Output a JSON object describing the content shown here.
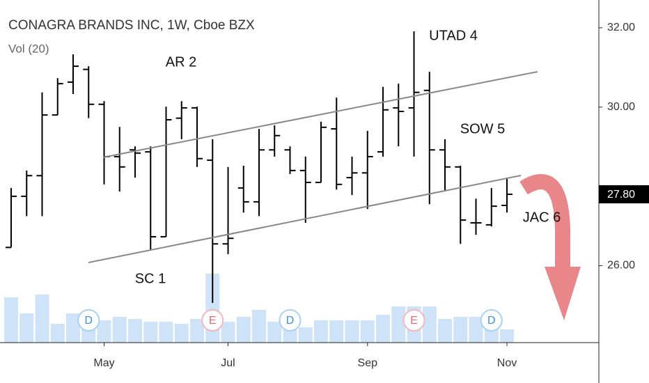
{
  "chart_data": {
    "type": "ohlc",
    "title": "CONAGRA BRANDS INC, 1W, Cboe BZX",
    "subtitle": "Vol (20)",
    "categories": [
      null,
      null,
      null,
      null,
      null,
      null,
      "May",
      null,
      null,
      null,
      null,
      null,
      null,
      null,
      "Jul",
      null,
      null,
      null,
      null,
      null,
      null,
      null,
      null,
      "Sep",
      null,
      null,
      null,
      null,
      null,
      null,
      null,
      null,
      "Nov"
    ],
    "open": [
      26.46,
      27.75,
      28.27,
      29.8,
      30.63,
      30.95,
      30.07,
      28.75,
      28.92,
      28.87,
      26.73,
      29.72,
      29.98,
      28.66,
      26.55,
      27.96,
      27.61,
      28.92,
      28.92,
      28.4,
      28.1,
      29.45,
      28.22,
      28.34,
      28.87,
      29.98,
      29.98,
      30.42,
      28.92,
      28.49,
      27.08,
      27.03,
      27.52
    ],
    "high": [
      27.96,
      28.4,
      30.37,
      30.73,
      31.33,
      31.03,
      30.15,
      29.5,
      29.01,
      29.01,
      30.01,
      30.15,
      30.01,
      29.19,
      28.49,
      28.52,
      29.45,
      29.54,
      29.01,
      28.75,
      29.63,
      30.24,
      28.75,
      29.4,
      30.51,
      30.59,
      31.91,
      30.89,
      29.19,
      28.52,
      27.69,
      27.96,
      28.22
    ],
    "low": [
      26.46,
      27.25,
      27.25,
      29.8,
      30.33,
      29.72,
      28.05,
      27.87,
      28.22,
      26.38,
      26.73,
      29.19,
      28.49,
      25.06,
      26.29,
      27.34,
      27.25,
      28.75,
      28.31,
      27.08,
      28.1,
      27.92,
      27.78,
      27.43,
      28.75,
      29.01,
      28.75,
      27.55,
      27.87,
      26.55,
      26.78,
      26.99,
      27.34
    ],
    "close": [
      27.75,
      28.27,
      29.8,
      30.59,
      31.03,
      30.07,
      28.75,
      28.49,
      28.84,
      26.73,
      29.68,
      29.98,
      28.7,
      26.55,
      26.69,
      27.61,
      28.92,
      29.28,
      28.4,
      28.1,
      29.49,
      28.05,
      28.34,
      28.75,
      29.93,
      29.89,
      30.37,
      28.92,
      28.49,
      27.15,
      27.08,
      27.5,
      27.8
    ],
    "volume": [
      65,
      42,
      69,
      27,
      42,
      42,
      32,
      37,
      34,
      30,
      30,
      27,
      34,
      99,
      30,
      37,
      47,
      30,
      42,
      22,
      32,
      32,
      32,
      32,
      40,
      52,
      52,
      52,
      34,
      37,
      37,
      32,
      19
    ],
    "volume_lim": [
      0,
      130
    ],
    "volume_color": "#cfe3f8",
    "color": "#000000",
    "ylim": [
      24.06,
      32.7
    ],
    "yticks": [
      {
        "value": 26,
        "label": "26.00"
      },
      {
        "value": 30,
        "label": "30.00"
      },
      {
        "value": 32,
        "label": "32.00"
      }
    ],
    "price_marker": {
      "value": 27.8,
      "label": "27.80"
    },
    "events": [
      "D",
      "E",
      "D",
      "E",
      "D"
    ],
    "annotations": [
      "AR 2",
      "SC 1",
      "UTAD 4",
      "SOW 5",
      "JAC 6"
    ]
  }
}
